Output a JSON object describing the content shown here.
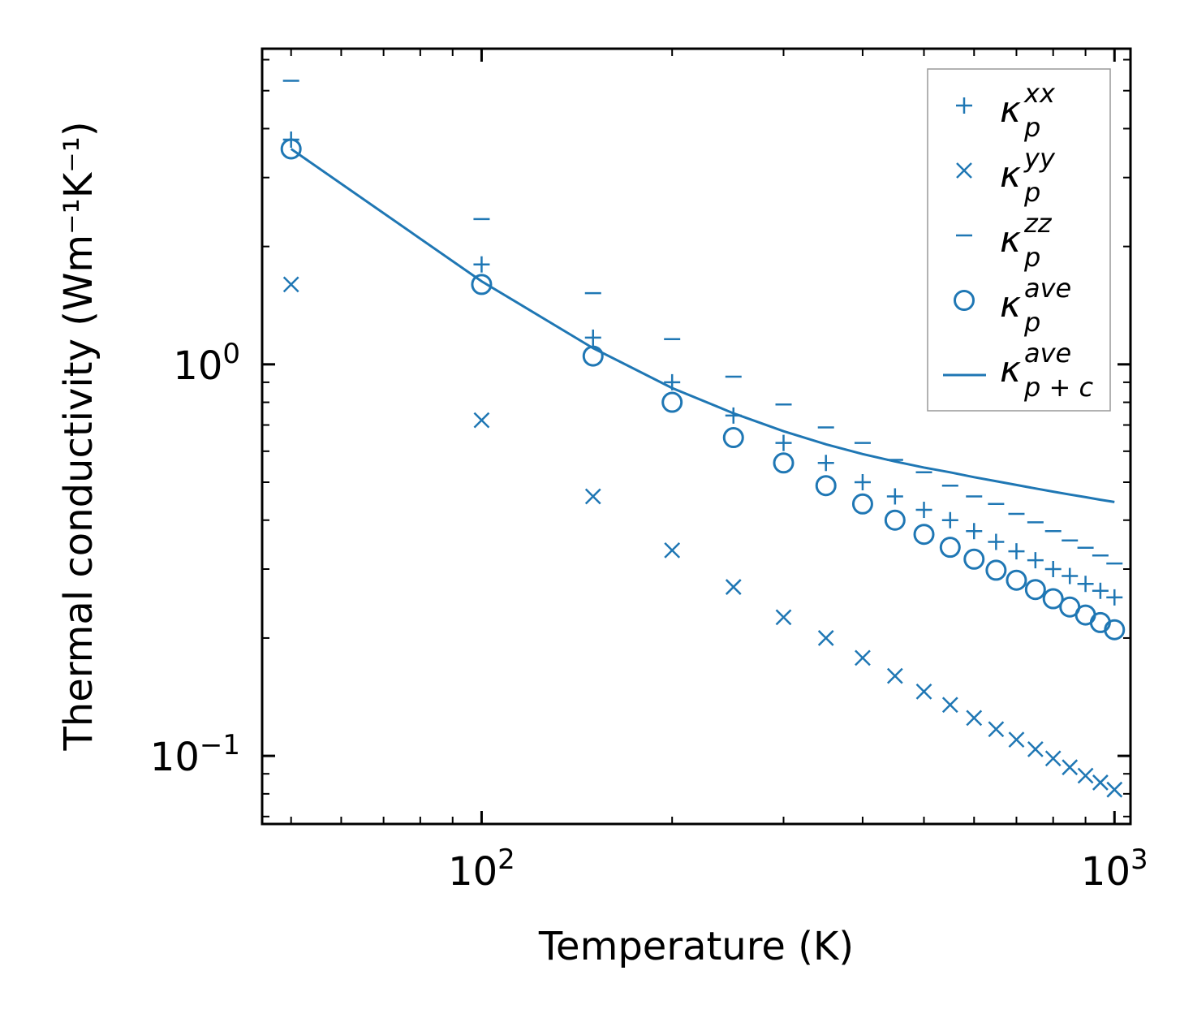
{
  "chart_data": {
    "type": "scatter",
    "xscale": "log",
    "yscale": "log",
    "xlabel": "Temperature (K)",
    "ylabel": "Thermal conductivity (Wm⁻¹K⁻¹)",
    "xlim": [
      45,
      1060
    ],
    "ylim": [
      0.067,
      6.4
    ],
    "xticks": [
      {
        "base": "10",
        "exp": "2"
      },
      {
        "base": "10",
        "exp": "3"
      }
    ],
    "yticks": [
      {
        "base": "10",
        "exp": "−1"
      },
      {
        "base": "10",
        "exp": "0"
      }
    ],
    "legend_position": "top-right",
    "x": [
      50,
      100,
      150,
      200,
      250,
      300,
      350,
      400,
      450,
      500,
      550,
      600,
      650,
      700,
      750,
      800,
      850,
      900,
      950,
      1000
    ],
    "series": [
      {
        "name": "kxx",
        "label": "κ",
        "sup": "xx",
        "sub": "p",
        "marker": "plus",
        "values": [
          3.75,
          1.8,
          1.17,
          0.9,
          0.74,
          0.63,
          0.56,
          0.5,
          0.46,
          0.425,
          0.4,
          0.375,
          0.352,
          0.333,
          0.316,
          0.3,
          0.288,
          0.275,
          0.264,
          0.254
        ]
      },
      {
        "name": "kyy",
        "label": "κ",
        "sup": "yy",
        "sub": "p",
        "marker": "x",
        "values": [
          1.6,
          0.72,
          0.46,
          0.335,
          0.27,
          0.226,
          0.2,
          0.178,
          0.16,
          0.146,
          0.135,
          0.125,
          0.117,
          0.11,
          0.104,
          0.0985,
          0.0935,
          0.089,
          0.0855,
          0.082
        ]
      },
      {
        "name": "kzz",
        "label": "κ",
        "sup": "zz",
        "sub": "p",
        "marker": "hline",
        "values": [
          5.3,
          2.35,
          1.52,
          1.16,
          0.93,
          0.79,
          0.69,
          0.63,
          0.57,
          0.53,
          0.49,
          0.46,
          0.44,
          0.415,
          0.395,
          0.375,
          0.355,
          0.34,
          0.325,
          0.31
        ]
      },
      {
        "name": "kave",
        "label": "κ",
        "sup": "ave",
        "sub": "p",
        "marker": "circle",
        "values": [
          3.55,
          1.6,
          1.05,
          0.8,
          0.65,
          0.56,
          0.49,
          0.44,
          0.4,
          0.368,
          0.341,
          0.318,
          0.298,
          0.281,
          0.266,
          0.252,
          0.24,
          0.229,
          0.219,
          0.21
        ]
      },
      {
        "name": "kave_pc",
        "label": "κ",
        "sup": "ave",
        "sub": "p + c",
        "marker": "line",
        "values": [
          3.55,
          1.63,
          1.1,
          0.87,
          0.75,
          0.675,
          0.625,
          0.59,
          0.565,
          0.545,
          0.53,
          0.515,
          0.503,
          0.492,
          0.482,
          0.473,
          0.465,
          0.458,
          0.451,
          0.445
        ]
      }
    ]
  },
  "style": {
    "series_color": "#1f77b4",
    "axis_color": "#000000",
    "legend_border": "#999999"
  }
}
